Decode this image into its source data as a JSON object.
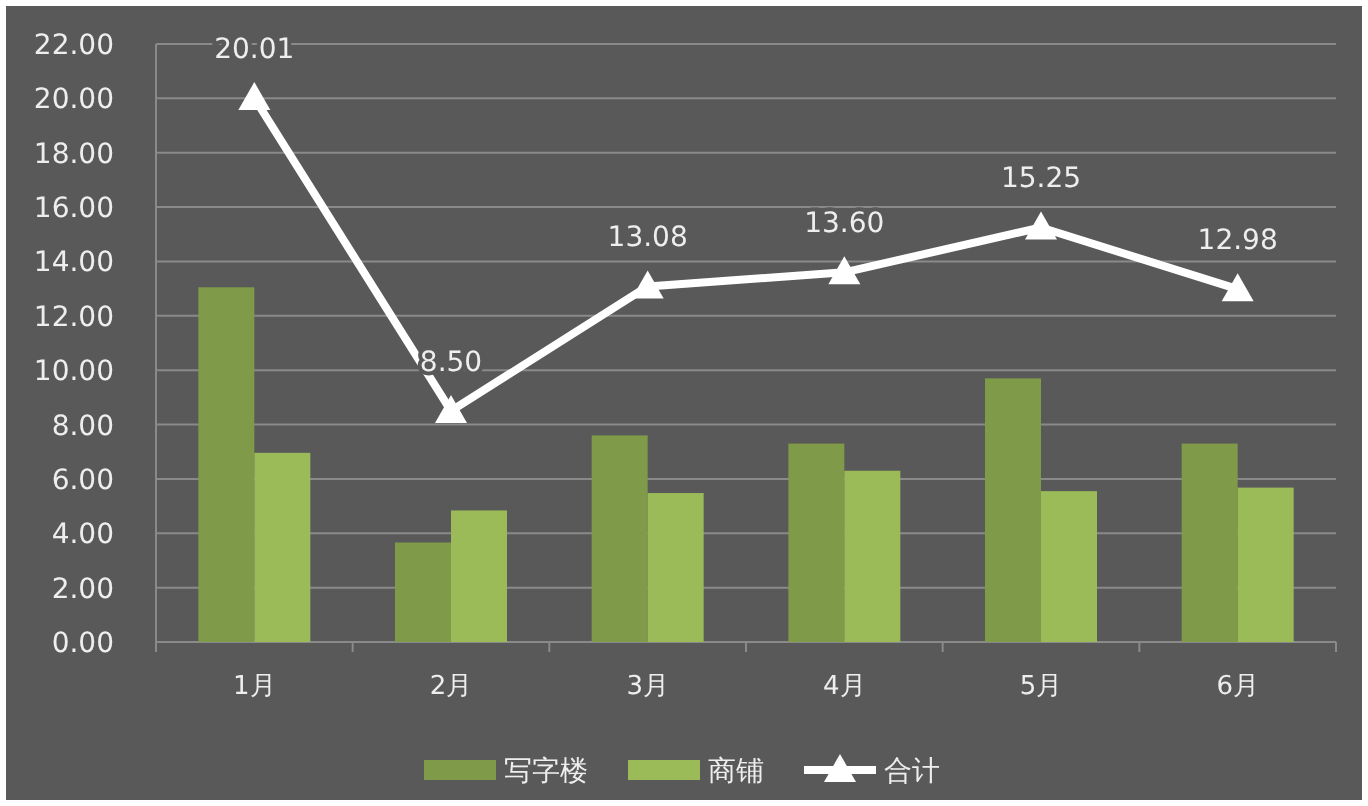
{
  "chart_data": {
    "type": "bar",
    "categories": [
      "1月",
      "2月",
      "3月",
      "4月",
      "5月",
      "6月"
    ],
    "series": [
      {
        "name": "写字楼",
        "color": "#7f9a48",
        "values": [
          13.05,
          3.66,
          7.6,
          7.3,
          9.7,
          7.3
        ]
      },
      {
        "name": "商铺",
        "color": "#9bbb59",
        "values": [
          6.96,
          4.84,
          5.48,
          6.3,
          5.55,
          5.68
        ]
      },
      {
        "name": "合计",
        "type": "line",
        "color": "#ffffff",
        "marker": "triangle",
        "values": [
          20.01,
          8.5,
          13.08,
          13.6,
          15.25,
          12.98
        ],
        "value_labels": [
          "20.01",
          "8.50",
          "13.08",
          "13.60",
          "15.25",
          "12.98"
        ]
      }
    ],
    "ylim": [
      0,
      22
    ],
    "yticks": [
      {
        "value": 0,
        "label": "0.00"
      },
      {
        "value": 2,
        "label": "2.00"
      },
      {
        "value": 4,
        "label": "4.00"
      },
      {
        "value": 6,
        "label": "6.00"
      },
      {
        "value": 8,
        "label": "8.00"
      },
      {
        "value": 10,
        "label": "10.00"
      },
      {
        "value": 12,
        "label": "12.00"
      },
      {
        "value": 14,
        "label": "14.00"
      },
      {
        "value": 16,
        "label": "16.00"
      },
      {
        "value": 18,
        "label": "18.00"
      },
      {
        "value": 20,
        "label": "20.00"
      },
      {
        "value": 22,
        "label": "22.00"
      }
    ],
    "grid": "y",
    "legend": "bottom"
  }
}
